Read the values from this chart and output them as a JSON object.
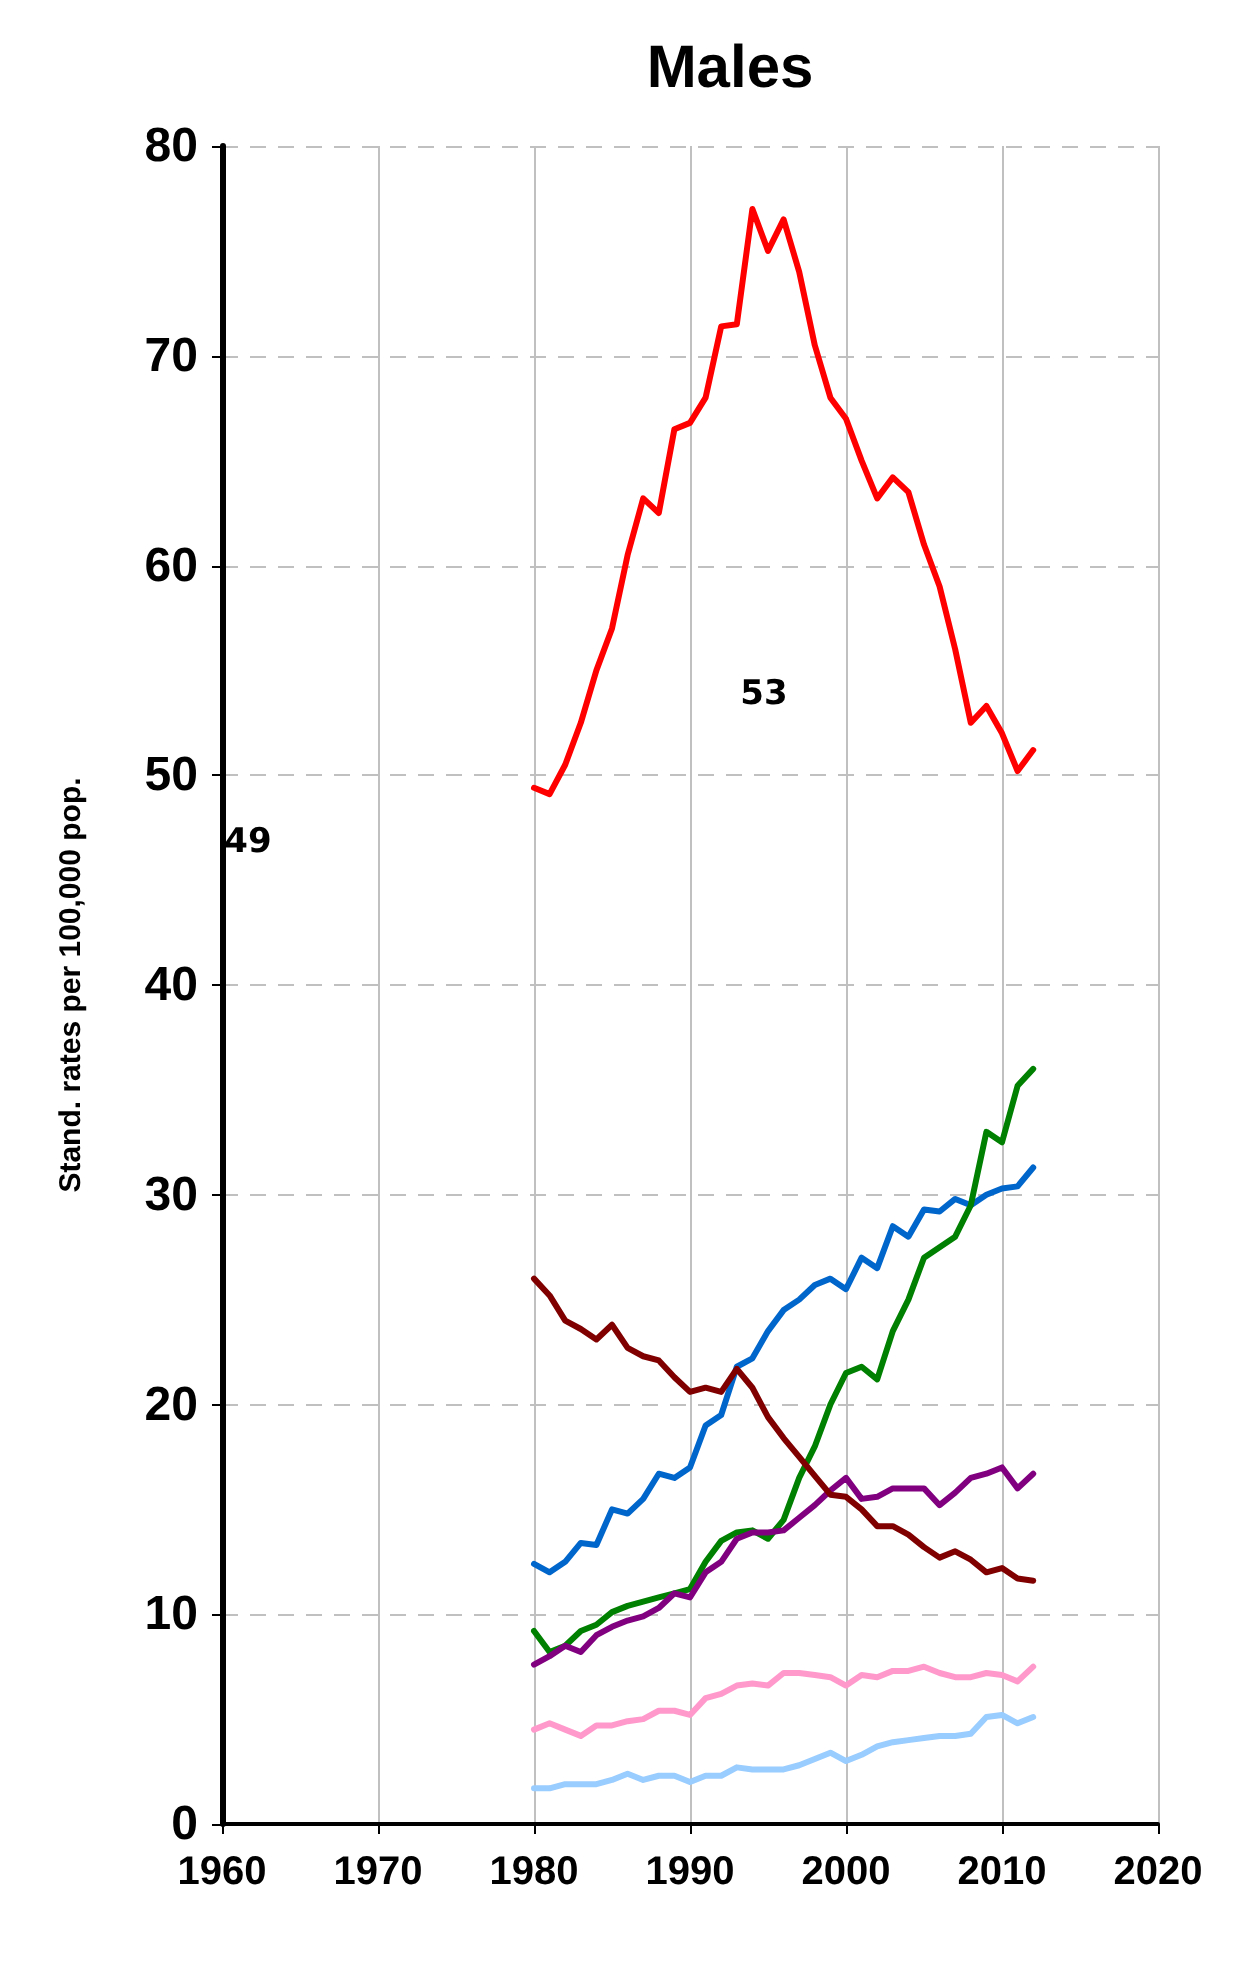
{
  "chart_data": {
    "type": "line",
    "title": "Males",
    "ylabel": "Stand. rates per 100,000 pop.",
    "x": [
      1980,
      1981,
      1982,
      1983,
      1984,
      1985,
      1986,
      1987,
      1988,
      1989,
      1990,
      1991,
      1992,
      1993,
      1994,
      1995,
      1996,
      1997,
      1998,
      1999,
      2000,
      2001,
      2002,
      2003,
      2004,
      2005,
      2006,
      2007,
      2008,
      2009,
      2010,
      2011,
      2012
    ],
    "series": [
      {
        "color": "#ff0000",
        "values": [
          49.4,
          49.1,
          50.5,
          52.5,
          55,
          57,
          60.5,
          63.2,
          62.5,
          66.5,
          66.8,
          68,
          71.4,
          71.5,
          77,
          75,
          76.5,
          74,
          70.5,
          68,
          67,
          65,
          63.2,
          64.2,
          63.5,
          61,
          59,
          56,
          52.5,
          53.3,
          52,
          50.2,
          51.2
        ]
      },
      {
        "color": "#0066cc",
        "values": [
          12.4,
          12,
          12.5,
          13.4,
          13.3,
          15,
          14.8,
          15.5,
          16.7,
          16.5,
          17,
          19,
          19.5,
          21.8,
          22.2,
          23.5,
          24.5,
          25,
          25.7,
          26,
          25.5,
          27,
          26.5,
          28.5,
          28,
          29.3,
          29.2,
          29.8,
          29.5,
          30,
          30.3,
          30.4,
          31.3
        ]
      },
      {
        "color": "#008000",
        "values": [
          9.2,
          8.2,
          8.5,
          9.2,
          9.5,
          10.1,
          10.4,
          10.6,
          10.8,
          11,
          11.2,
          12.5,
          13.5,
          13.9,
          14,
          13.6,
          14.5,
          16.5,
          18,
          20,
          21.5,
          21.8,
          21.2,
          23.5,
          25,
          27,
          27.5,
          28,
          29.5,
          33,
          32.5,
          35.2,
          36
        ]
      },
      {
        "color": "#800080",
        "values": [
          7.6,
          8,
          8.5,
          8.2,
          9,
          9.4,
          9.7,
          9.9,
          10.3,
          11,
          10.8,
          12,
          12.5,
          13.6,
          13.9,
          13.9,
          14,
          14.6,
          15.2,
          15.9,
          16.5,
          15.5,
          15.6,
          16,
          16,
          16,
          15.2,
          15.8,
          16.5,
          16.7,
          17,
          16,
          16.7
        ]
      },
      {
        "color": "#800000",
        "values": [
          26,
          25.2,
          24,
          23.6,
          23.1,
          23.8,
          22.7,
          22.3,
          22.1,
          21.3,
          20.6,
          20.8,
          20.6,
          21.7,
          20.8,
          19.4,
          18.4,
          17.5,
          16.6,
          15.7,
          15.6,
          15,
          14.2,
          14.2,
          13.8,
          13.2,
          12.7,
          13,
          12.6,
          12,
          12.2,
          11.7,
          11.6
        ]
      },
      {
        "color": "#ff99cc",
        "values": [
          4.5,
          4.8,
          4.5,
          4.2,
          4.7,
          4.7,
          4.9,
          5,
          5.4,
          5.4,
          5.2,
          6,
          6.2,
          6.6,
          6.7,
          6.6,
          7.2,
          7.2,
          7.1,
          7,
          6.6,
          7.1,
          7,
          7.3,
          7.3,
          7.5,
          7.2,
          7,
          7,
          7.2,
          7.1,
          6.8,
          7.5
        ]
      },
      {
        "color": "#99ccff",
        "values": [
          1.7,
          1.7,
          1.9,
          1.9,
          1.9,
          2.1,
          2.4,
          2.1,
          2.3,
          2.3,
          2,
          2.3,
          2.3,
          2.7,
          2.6,
          2.6,
          2.6,
          2.8,
          3.1,
          3.4,
          3,
          3.3,
          3.7,
          3.9,
          4,
          4.1,
          4.2,
          4.2,
          4.3,
          5.1,
          5.2,
          4.8,
          5.1
        ]
      }
    ],
    "xlim": [
      1960,
      2020
    ],
    "xticks": [
      1960,
      1970,
      1980,
      1990,
      2000,
      2010,
      2020
    ],
    "ylim": [
      0,
      80
    ],
    "yticks": [
      0,
      10,
      20,
      30,
      40,
      50,
      60,
      70,
      80
    ],
    "grid": true,
    "marker": "none",
    "line_style": "solid",
    "annotations": [
      "49",
      "53"
    ]
  }
}
